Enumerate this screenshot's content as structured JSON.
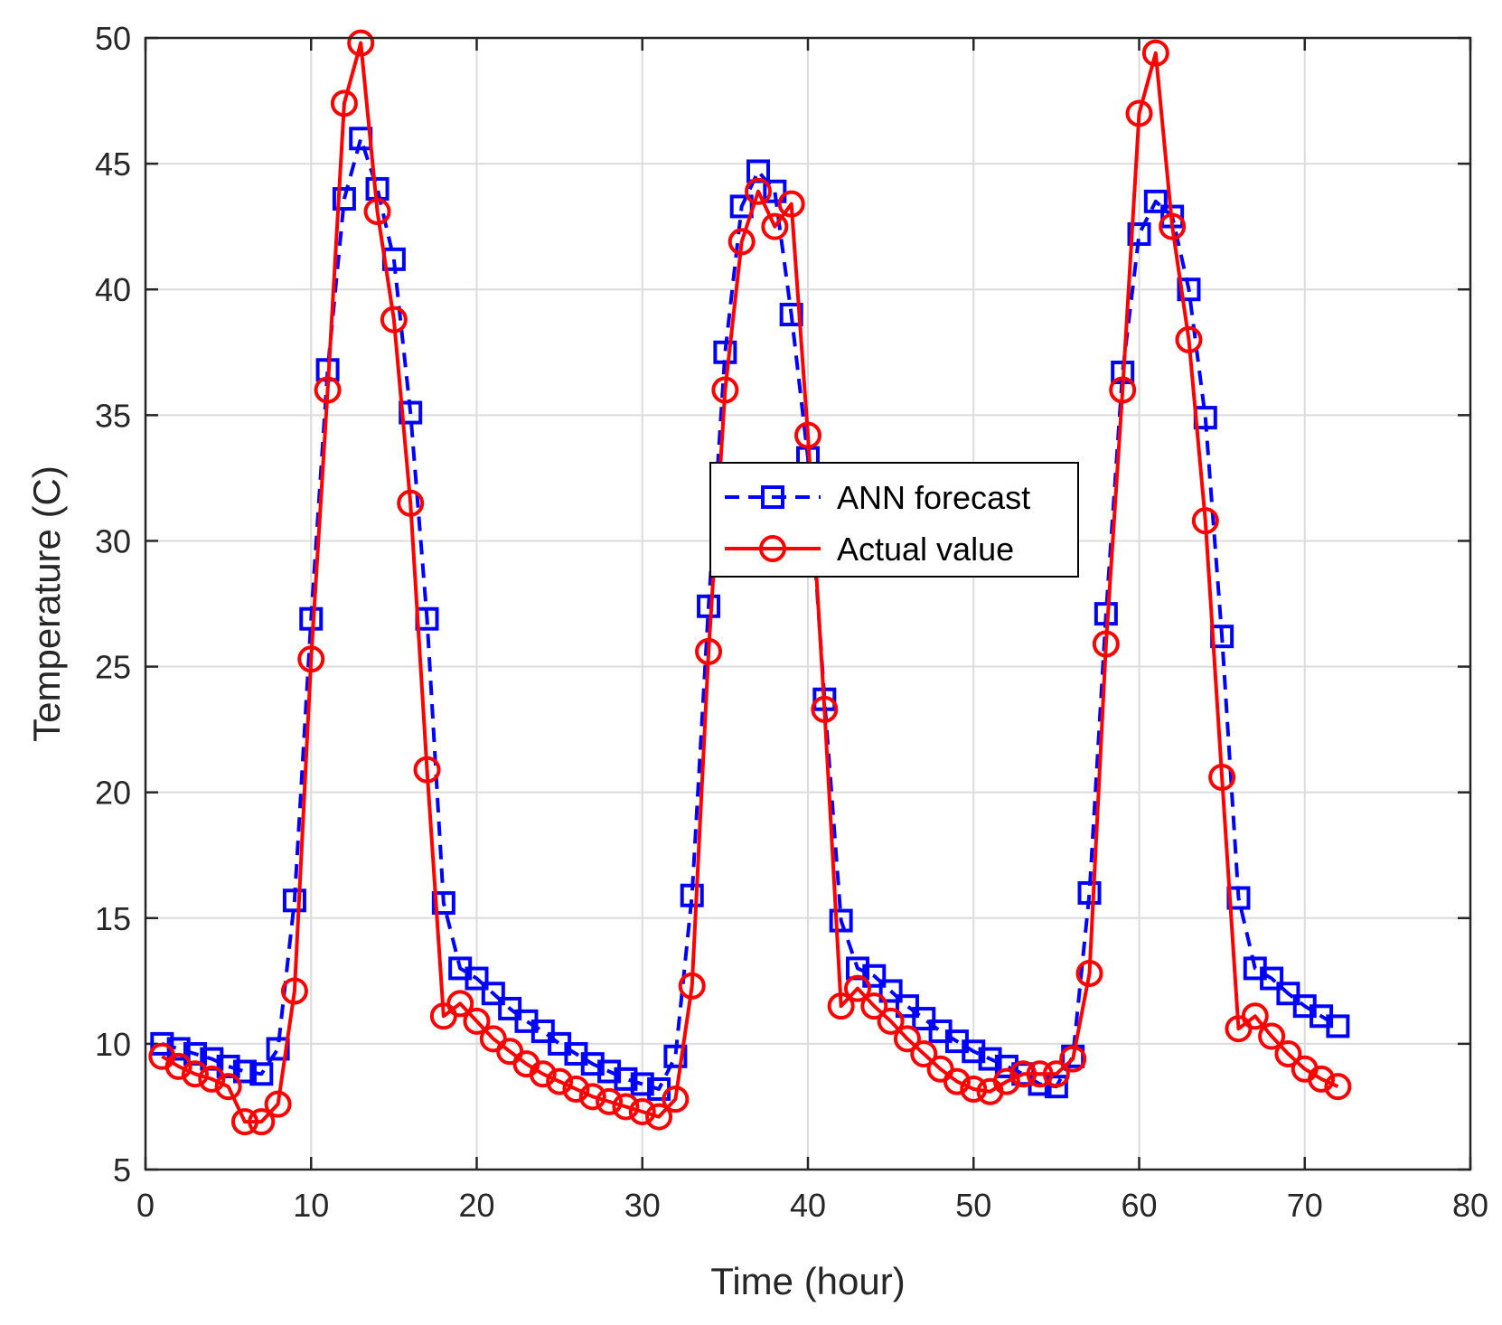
{
  "chart_data": {
    "type": "line",
    "title": "",
    "xlabel": "Time (hour)",
    "ylabel": "Temperature (C)",
    "xlim": [
      0,
      80
    ],
    "ylim": [
      5,
      50
    ],
    "xticks": [
      "0",
      "10",
      "20",
      "30",
      "40",
      "50",
      "60",
      "70",
      "80"
    ],
    "yticks": [
      "5",
      "10",
      "15",
      "20",
      "25",
      "30",
      "35",
      "40",
      "45",
      "50"
    ],
    "grid": true,
    "legend_position": "center",
    "x": [
      1,
      2,
      3,
      4,
      5,
      6,
      7,
      8,
      9,
      10,
      11,
      12,
      13,
      14,
      15,
      16,
      17,
      18,
      19,
      20,
      21,
      22,
      23,
      24,
      25,
      26,
      27,
      28,
      29,
      30,
      31,
      32,
      33,
      34,
      35,
      36,
      37,
      38,
      39,
      40,
      41,
      42,
      43,
      44,
      45,
      46,
      47,
      48,
      49,
      50,
      51,
      52,
      53,
      54,
      55,
      56,
      57,
      58,
      59,
      60,
      61,
      62,
      63,
      64,
      65,
      66,
      67,
      68,
      69,
      70,
      71,
      72
    ],
    "series": [
      {
        "name": "ANN forecast",
        "color": "#0000ff",
        "line_style": "dashed",
        "marker": "square",
        "values": [
          10.0,
          9.8,
          9.6,
          9.4,
          9.1,
          8.9,
          8.8,
          9.8,
          15.7,
          26.9,
          36.8,
          43.6,
          46.0,
          44.0,
          41.2,
          35.1,
          26.9,
          15.6,
          13.0,
          12.6,
          12.0,
          11.4,
          10.9,
          10.5,
          10.0,
          9.6,
          9.2,
          8.9,
          8.6,
          8.4,
          8.2,
          9.5,
          15.9,
          27.4,
          37.5,
          43.3,
          44.7,
          43.9,
          39.0,
          33.3,
          23.7,
          14.9,
          13.0,
          12.7,
          12.1,
          11.5,
          11.0,
          10.5,
          10.1,
          9.7,
          9.4,
          9.1,
          8.8,
          8.4,
          8.3,
          9.5,
          16.0,
          27.1,
          36.7,
          42.2,
          43.5,
          42.9,
          40.0,
          34.9,
          26.2,
          15.8,
          13.0,
          12.6,
          12.0,
          11.5,
          11.1,
          10.7
        ]
      },
      {
        "name": "Actual value",
        "color": "#ff0000",
        "line_style": "solid",
        "marker": "circle",
        "values": [
          9.5,
          9.1,
          8.8,
          8.6,
          8.3,
          6.9,
          6.9,
          7.6,
          12.1,
          25.3,
          36.0,
          47.4,
          49.8,
          43.1,
          38.8,
          31.5,
          20.9,
          11.1,
          11.6,
          10.9,
          10.2,
          9.7,
          9.2,
          8.8,
          8.5,
          8.2,
          7.9,
          7.7,
          7.5,
          7.3,
          7.1,
          7.8,
          12.3,
          25.6,
          36.0,
          41.9,
          43.9,
          42.5,
          43.4,
          34.2,
          23.3,
          11.5,
          12.2,
          11.5,
          10.9,
          10.2,
          9.6,
          9.0,
          8.5,
          8.2,
          8.1,
          8.5,
          8.8,
          8.8,
          8.8,
          9.4,
          12.8,
          25.9,
          36.0,
          47.0,
          49.4,
          42.5,
          38.0,
          30.8,
          20.6,
          10.6,
          11.1,
          10.3,
          9.6,
          9.0,
          8.6,
          8.3
        ]
      }
    ]
  }
}
